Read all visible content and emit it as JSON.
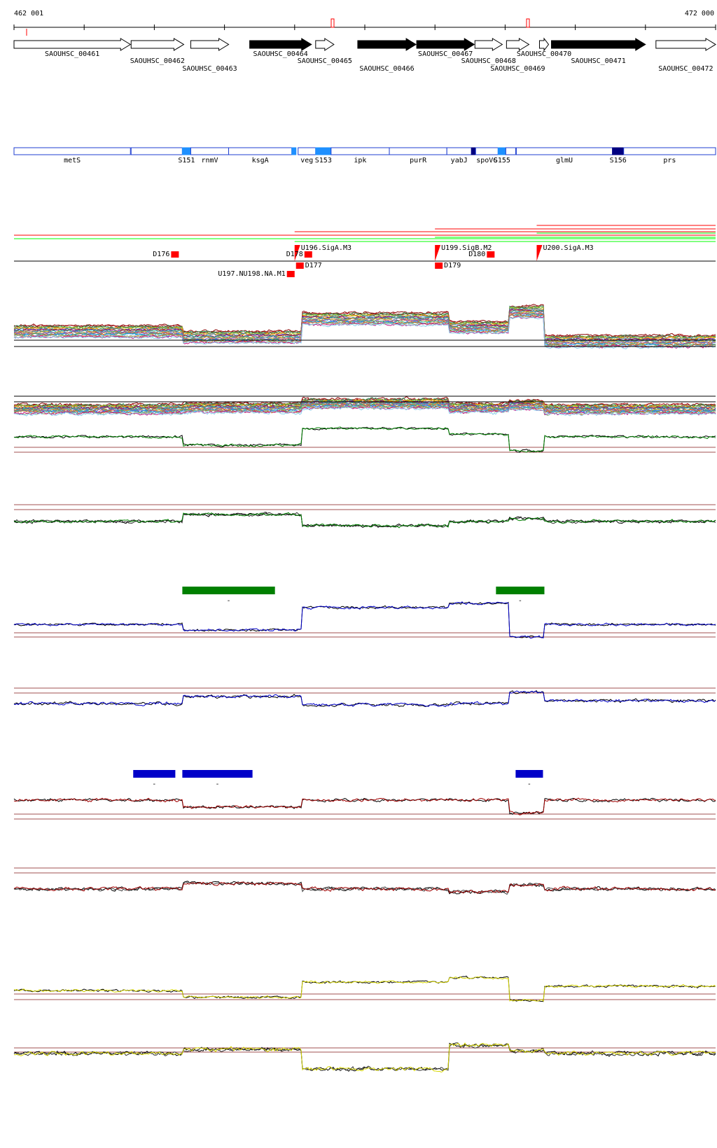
{
  "coords": {
    "start_label": "462 001",
    "end_label": "472 000",
    "start_bp": 462001,
    "end_bp": 472000
  },
  "colors": {
    "annot_blue": "#1f3fd0",
    "annot_light": "#1e90ff",
    "annot_dark": "#000080",
    "red": "#ff0000",
    "green": "#008000",
    "blue": "#0000c8",
    "darkred": "#a00000",
    "yellow": "#d4d400",
    "guide": "#a05050"
  },
  "genes": [
    {
      "id": "SAOUHSC_00461",
      "start": 462001,
      "end": 463660,
      "strand": "+",
      "filled": false,
      "label_row": 0
    },
    {
      "id": "SAOUHSC_00462",
      "start": 463670,
      "end": 464420,
      "strand": "+",
      "filled": false,
      "label_row": 1
    },
    {
      "id": "SAOUHSC_00463",
      "start": 464520,
      "end": 465060,
      "strand": "+",
      "filled": false,
      "label_row": 2
    },
    {
      "id": "SAOUHSC_00464",
      "start": 465360,
      "end": 466240,
      "strand": "+",
      "filled": true,
      "label_row": 0
    },
    {
      "id": "SAOUHSC_00465",
      "start": 466300,
      "end": 466560,
      "strand": "+",
      "filled": false,
      "label_row": 1
    },
    {
      "id": "SAOUHSC_00466",
      "start": 466900,
      "end": 467730,
      "strand": "+",
      "filled": true,
      "label_row": 2
    },
    {
      "id": "SAOUHSC_00467",
      "start": 467740,
      "end": 468560,
      "strand": "+",
      "filled": true,
      "label_row": 0
    },
    {
      "id": "SAOUHSC_00468",
      "start": 468570,
      "end": 468960,
      "strand": "+",
      "filled": false,
      "label_row": 1
    },
    {
      "id": "SAOUHSC_00469",
      "start": 469020,
      "end": 469340,
      "strand": "+",
      "filled": false,
      "label_row": 2
    },
    {
      "id": "SAOUHSC_00470",
      "start": 469490,
      "end": 469620,
      "strand": "+",
      "filled": false,
      "label_row": 0
    },
    {
      "id": "SAOUHSC_00471",
      "start": 469660,
      "end": 471000,
      "strand": "+",
      "filled": true,
      "label_row": 1
    },
    {
      "id": "SAOUHSC_00472",
      "start": 471150,
      "end": 472000,
      "strand": "+",
      "filled": false,
      "label_row": 2
    }
  ],
  "annotations": [
    {
      "label": "metS",
      "start": 462001,
      "end": 463660,
      "kind": "gene"
    },
    {
      "label": "",
      "start": 463670,
      "end": 464400,
      "kind": "gene"
    },
    {
      "label": "S151",
      "start": 464400,
      "end": 464520,
      "kind": "srna"
    },
    {
      "label": "rnmV",
      "start": 464520,
      "end": 465060,
      "kind": "gene"
    },
    {
      "label": "ksgA",
      "start": 465060,
      "end": 465960,
      "kind": "gene"
    },
    {
      "label": "",
      "start": 465960,
      "end": 466020,
      "kind": "srna"
    },
    {
      "label": "veg",
      "start": 466050,
      "end": 466300,
      "kind": "gene"
    },
    {
      "label": "S153",
      "start": 466300,
      "end": 466520,
      "kind": "srna"
    },
    {
      "label": "ipk",
      "start": 466520,
      "end": 467350,
      "kind": "gene"
    },
    {
      "label": "purR",
      "start": 467350,
      "end": 468170,
      "kind": "gene"
    },
    {
      "label": "yabJ",
      "start": 468170,
      "end": 468520,
      "kind": "gene"
    },
    {
      "label": "",
      "start": 468520,
      "end": 468580,
      "kind": "dark"
    },
    {
      "label": "spoVG",
      "start": 468580,
      "end": 468900,
      "kind": "gene"
    },
    {
      "label": "S155",
      "start": 468900,
      "end": 469010,
      "kind": "srna"
    },
    {
      "label": "",
      "start": 469010,
      "end": 469150,
      "kind": "gene"
    },
    {
      "label": "glmU",
      "start": 469160,
      "end": 470530,
      "kind": "gene"
    },
    {
      "label": "S156",
      "start": 470530,
      "end": 470690,
      "kind": "dark"
    },
    {
      "label": "prs",
      "start": 470690,
      "end": 472000,
      "kind": "gene"
    }
  ],
  "features": [
    {
      "label": "D176",
      "pos": 464350,
      "row": 0,
      "dir": "left"
    },
    {
      "label": "U196.SigA.M3",
      "pos": 466000,
      "row": -1,
      "dir": "right"
    },
    {
      "label": "D178",
      "pos": 466250,
      "row": 0,
      "dir": "left"
    },
    {
      "label": "D177",
      "pos": 466020,
      "row": 1,
      "dir": "right"
    },
    {
      "label": "U197.NU198.NA.M1",
      "pos": 466000,
      "row": 2,
      "dir": "left"
    },
    {
      "label": "U199.SigB.M2",
      "pos": 468000,
      "row": -1,
      "dir": "right"
    },
    {
      "label": "D180",
      "pos": 468850,
      "row": 0,
      "dir": "left"
    },
    {
      "label": "D179",
      "pos": 468000,
      "row": 1,
      "dir": "right"
    },
    {
      "label": "U200.SigA.M3",
      "pos": 469450,
      "row": -1,
      "dir": "right"
    }
  ],
  "segments": [
    {
      "track": 4,
      "start": 464400,
      "end": 465720,
      "color": "green",
      "label": "-"
    },
    {
      "track": 4,
      "start": 468870,
      "end": 469560,
      "color": "green",
      "label": "-"
    },
    {
      "track": 6,
      "start": 463700,
      "end": 464300,
      "color": "blue",
      "label": "-"
    },
    {
      "track": 6,
      "start": 464400,
      "end": 465400,
      "color": "blue",
      "label": "-"
    },
    {
      "track": 6,
      "start": 469150,
      "end": 469540,
      "color": "blue",
      "label": "-"
    }
  ],
  "breakpoints": [
    464400,
    466100,
    468200,
    469050,
    469550
  ]
}
